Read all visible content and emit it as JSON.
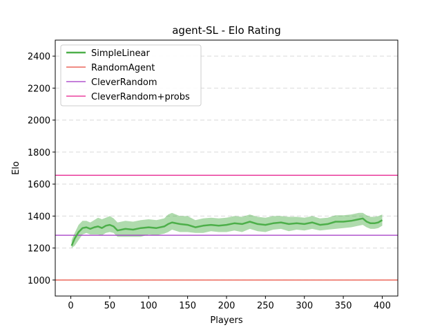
{
  "chart_data": {
    "type": "line",
    "title": "agent-SL - Elo Rating",
    "xlabel": "Players",
    "ylabel": "Elo",
    "xlim": [
      -20,
      420
    ],
    "ylim": [
      900,
      2500
    ],
    "xticks": [
      0,
      50,
      100,
      150,
      200,
      250,
      300,
      350,
      400
    ],
    "yticks": [
      1000,
      1200,
      1400,
      1600,
      1800,
      2000,
      2200,
      2400
    ],
    "grid": "horizontal dashed",
    "legend_position": "top-left",
    "series": [
      {
        "name": "SimpleLinear",
        "color": "#4daf4a",
        "band_color": "#4daf4a",
        "x": [
          1,
          5,
          10,
          15,
          20,
          25,
          30,
          35,
          40,
          45,
          50,
          55,
          60,
          70,
          80,
          90,
          100,
          110,
          120,
          125,
          130,
          140,
          150,
          160,
          170,
          180,
          190,
          200,
          210,
          220,
          230,
          240,
          250,
          260,
          270,
          280,
          290,
          300,
          310,
          320,
          330,
          340,
          350,
          360,
          370,
          375,
          380,
          385,
          390,
          395,
          400
        ],
        "values": [
          1215,
          1260,
          1300,
          1325,
          1330,
          1320,
          1330,
          1335,
          1325,
          1340,
          1345,
          1335,
          1310,
          1320,
          1315,
          1325,
          1330,
          1325,
          1335,
          1350,
          1360,
          1350,
          1345,
          1330,
          1340,
          1345,
          1340,
          1345,
          1355,
          1350,
          1365,
          1350,
          1345,
          1355,
          1360,
          1350,
          1355,
          1350,
          1360,
          1345,
          1350,
          1365,
          1365,
          1370,
          1380,
          1385,
          1365,
          1355,
          1355,
          1360,
          1375
        ],
        "lower": [
          1200,
          1215,
          1250,
          1285,
          1295,
          1285,
          1285,
          1285,
          1280,
          1295,
          1300,
          1295,
          1270,
          1270,
          1270,
          1270,
          1285,
          1280,
          1290,
          1300,
          1315,
          1300,
          1300,
          1295,
          1295,
          1305,
          1300,
          1300,
          1310,
          1300,
          1320,
          1305,
          1300,
          1315,
          1320,
          1305,
          1315,
          1310,
          1320,
          1310,
          1315,
          1320,
          1325,
          1330,
          1340,
          1345,
          1330,
          1320,
          1320,
          1325,
          1340
        ],
        "upper": [
          1250,
          1295,
          1345,
          1370,
          1370,
          1360,
          1375,
          1390,
          1380,
          1390,
          1400,
          1385,
          1360,
          1370,
          1365,
          1375,
          1380,
          1375,
          1385,
          1410,
          1420,
          1400,
          1400,
          1375,
          1385,
          1390,
          1385,
          1390,
          1400,
          1395,
          1410,
          1395,
          1390,
          1400,
          1400,
          1395,
          1395,
          1390,
          1400,
          1385,
          1390,
          1405,
          1405,
          1410,
          1420,
          1420,
          1405,
          1395,
          1395,
          1400,
          1410
        ]
      }
    ],
    "reference_lines": [
      {
        "name": "RandomAgent",
        "y": 1000,
        "color": "#e8483a"
      },
      {
        "name": "CleverRandom",
        "y": 1280,
        "color": "#a033c4"
      },
      {
        "name": "CleverRandom+probs",
        "y": 1655,
        "color": "#e61a8a"
      }
    ]
  }
}
